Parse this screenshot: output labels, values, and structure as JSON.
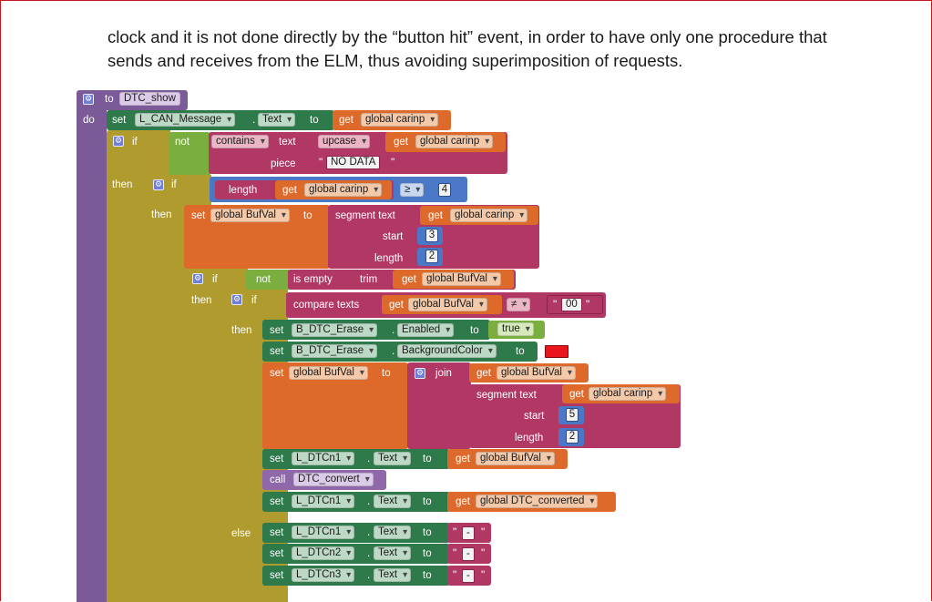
{
  "paragraph": {
    "line1": "clock and it is not done directly by the “button hit” event, in order to have only one procedure that",
    "line2": "sends and receives from the ELM, thus avoiding superimposition of requests."
  },
  "blocks": {
    "to": "to",
    "proc_name": "DTC_show",
    "do": "do",
    "set": "set",
    "get": "get",
    "call": "call",
    "if": "if",
    "then": "then",
    "else": "else",
    "not": "not",
    "to_kw": "to",
    "contains": "contains",
    "text": "text",
    "piece": "piece",
    "upcase": "upcase",
    "no_data": "NO DATA",
    "length": "length",
    "gte": "≥",
    "num4": "4",
    "segment": "segment text",
    "start": "start",
    "num3": "3",
    "num2": "2",
    "num5": "5",
    "is_empty": "is empty",
    "trim": "trim",
    "compare": "compare texts",
    "neq": "≠",
    "str00": "00",
    "join": "join",
    "true": "true",
    "dash": "-",
    "quote": "\"",
    "l_can": "L_CAN_Message",
    "text_prop": "Text",
    "enabled_prop": "Enabled",
    "bg_prop": "BackgroundColor",
    "g_carinp": "global carinp",
    "g_bufval": "global BufVal",
    "g_dtcconv": "global DTC_converted",
    "b_erase": "B_DTC_Erase",
    "l_dtcn1": "L_DTCn1",
    "l_dtcn2": "L_DTCn2",
    "l_dtcn3": "L_DTCn3",
    "dtc_convert": "DTC_convert",
    "dot": ".",
    "colors": {
      "procedure": "#7b5b97",
      "control": "#b09b2e",
      "logic": "#7aae3e",
      "text": "#b13764",
      "variable": "#dd6a2b",
      "math": "#4b78c6",
      "component": "#2f7a4a",
      "color_red": "#e8151b"
    }
  }
}
